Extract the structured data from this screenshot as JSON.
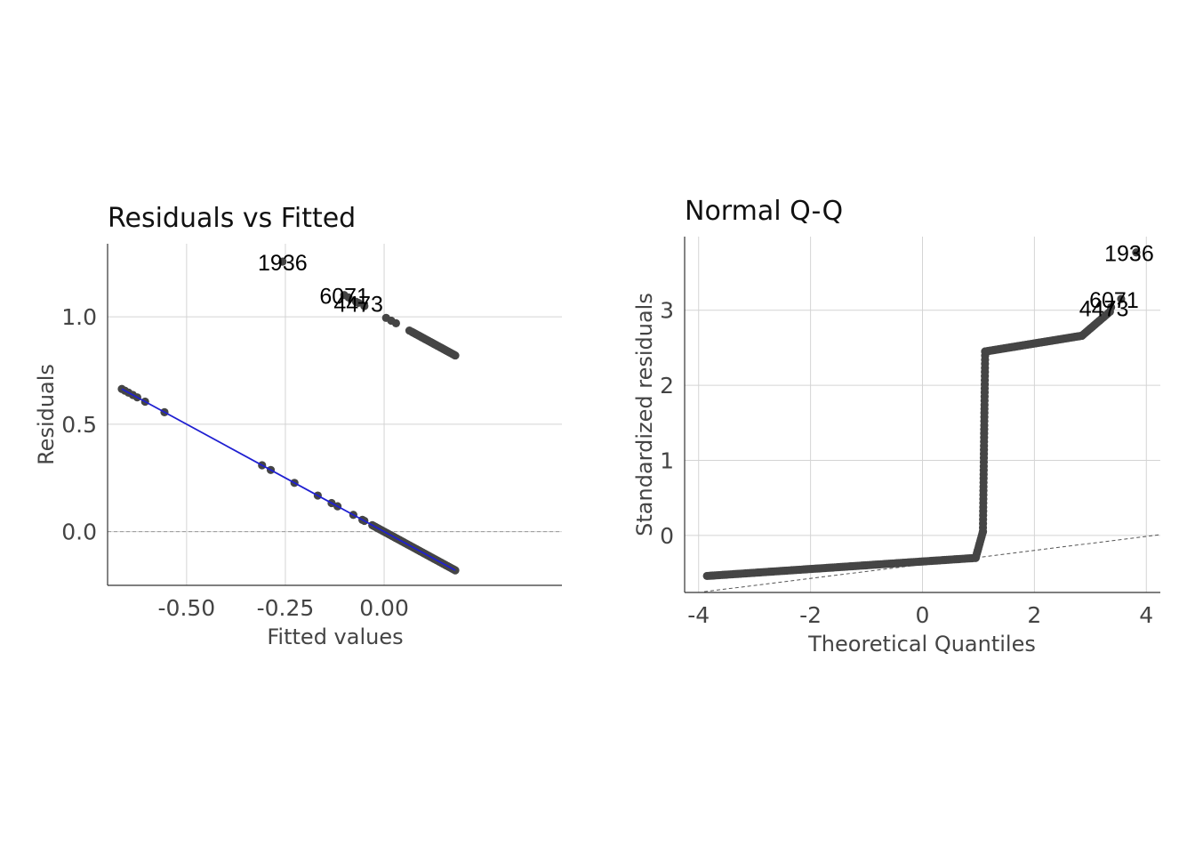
{
  "chart_data": [
    {
      "type": "scatter",
      "title": "Residuals vs Fitted",
      "xlabel": "Fitted values",
      "ylabel": "Residuals",
      "xlim": [
        -0.7,
        0.45
      ],
      "ylim": [
        -0.25,
        1.34
      ],
      "xticks": [
        -0.5,
        -0.25,
        0.0
      ],
      "xtick_labels": [
        "-0.50",
        "-0.25",
        "0.00"
      ],
      "yticks": [
        0.0,
        0.5,
        1.0
      ],
      "ytick_labels": [
        "0.0",
        "0.5",
        "1.0"
      ],
      "grid": true,
      "point_color": "#454545",
      "smooth_color": "#1f1fd1",
      "reference_color": "#999999",
      "clusters": [
        {
          "x": [
            -0.664,
            -0.656,
            -0.647,
            -0.636,
            -0.625,
            -0.605,
            -0.556,
            -0.309,
            -0.287,
            -0.227,
            -0.168,
            -0.133,
            -0.118,
            -0.078,
            -0.055,
            -0.05
          ],
          "y": [
            0.664,
            0.656,
            0.647,
            0.636,
            0.625,
            0.605,
            0.556,
            0.309,
            0.287,
            0.227,
            0.168,
            0.133,
            0.118,
            0.078,
            0.055,
            0.05
          ]
        },
        {
          "band": "lower",
          "x_from": -0.03,
          "x_to": 0.18,
          "count": 55
        },
        {
          "band": "upper",
          "x_from": 0.0,
          "x_to": 0.18,
          "count": 40
        }
      ],
      "upper_points": {
        "x": [
          -0.09,
          -0.071,
          -0.05,
          0.005,
          0.018,
          0.03,
          0.064
        ],
        "y": [
          1.09,
          1.07,
          1.05,
          0.995,
          0.982,
          0.97,
          0.936
        ]
      },
      "outliers": [
        {
          "label": "1936",
          "x": -0.257,
          "y": 1.257
        },
        {
          "label": "6071",
          "x": -0.101,
          "y": 1.101
        },
        {
          "label": "4473",
          "x": -0.065,
          "y": 1.065
        }
      ],
      "smooth_line": {
        "x": [
          -0.664,
          0.18
        ],
        "y": [
          0.664,
          -0.18
        ]
      },
      "reference_line_y": 0
    },
    {
      "type": "scatter",
      "title": "Normal Q-Q",
      "xlabel": "Theoretical Quantiles",
      "ylabel": "Standardized residuals",
      "xlim": [
        -4.25,
        4.25
      ],
      "ylim": [
        -0.76,
        3.98
      ],
      "xticks": [
        -4,
        -2,
        0,
        2,
        4
      ],
      "xtick_labels": [
        "-4",
        "-2",
        "0",
        "2",
        "4"
      ],
      "yticks": [
        0,
        1,
        2,
        3
      ],
      "ytick_labels": [
        "0",
        "1",
        "2",
        "3"
      ],
      "grid": true,
      "point_color": "#454545",
      "reference_color": "#555555",
      "reference_line": {
        "x": [
          -3.9,
          4.25
        ],
        "y": [
          -0.75,
          0.01
        ]
      },
      "segments": [
        {
          "x_from": -3.85,
          "x_to": 0.95,
          "y_from": -0.54,
          "y_to": -0.3,
          "count": 140
        },
        {
          "x_from": 0.95,
          "x_to": 1.08,
          "y_from": -0.3,
          "y_to": 0.05,
          "count": 12
        },
        {
          "x_from": 1.08,
          "x_to": 1.12,
          "y_from": 0.05,
          "y_to": 2.45,
          "count": 45
        },
        {
          "x_from": 1.12,
          "x_to": 2.85,
          "y_from": 2.45,
          "y_to": 2.66,
          "count": 90
        },
        {
          "x_from": 2.85,
          "x_to": 3.35,
          "y_from": 2.66,
          "y_to": 2.98,
          "count": 20
        }
      ],
      "outliers": [
        {
          "label": "1936",
          "x": 3.82,
          "y": 3.77
        },
        {
          "label": "6071",
          "x": 3.55,
          "y": 3.15
        },
        {
          "label": "4473",
          "x": 3.37,
          "y": 3.04
        }
      ]
    }
  ]
}
